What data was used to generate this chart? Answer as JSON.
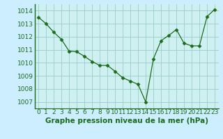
{
  "x": [
    0,
    1,
    2,
    3,
    4,
    5,
    6,
    7,
    8,
    9,
    10,
    11,
    12,
    13,
    14,
    15,
    16,
    17,
    18,
    19,
    20,
    21,
    22,
    23
  ],
  "y": [
    1013.5,
    1013.0,
    1012.35,
    1011.8,
    1010.9,
    1010.85,
    1010.5,
    1010.1,
    1009.8,
    1009.8,
    1009.35,
    1008.85,
    1008.6,
    1008.35,
    1007.0,
    1010.3,
    1011.7,
    1012.1,
    1012.55,
    1011.5,
    1011.3,
    1011.3,
    1013.55,
    1014.1
  ],
  "line_color": "#1a6b1a",
  "marker": "D",
  "marker_size": 2.5,
  "bg_color": "#cceeff",
  "plot_bg_color": "#cff0f0",
  "grid_color": "#99cccc",
  "axis_color": "#1a6b1a",
  "xlabel": "Graphe pression niveau de la mer (hPa)",
  "xlabel_fontsize": 7.5,
  "tick_fontsize": 6.5,
  "ylim": [
    1006.5,
    1014.5
  ],
  "yticks": [
    1007,
    1008,
    1009,
    1010,
    1011,
    1012,
    1013,
    1014
  ],
  "xticks": [
    0,
    1,
    2,
    3,
    4,
    5,
    6,
    7,
    8,
    9,
    10,
    11,
    12,
    13,
    14,
    15,
    16,
    17,
    18,
    19,
    20,
    21,
    22,
    23
  ],
  "xlim": [
    -0.5,
    23.5
  ]
}
